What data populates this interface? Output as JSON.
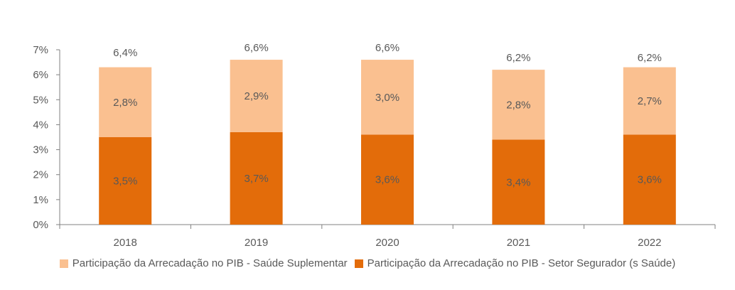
{
  "chart_data": {
    "type": "bar",
    "stacked": true,
    "categories": [
      "2018",
      "2019",
      "2020",
      "2021",
      "2022"
    ],
    "series": [
      {
        "name": "Participação da Arrecadação no PIB  - Setor Segurador (s Saúde)",
        "values": [
          3.5,
          3.7,
          3.6,
          3.4,
          3.6
        ],
        "labels": [
          "3,5%",
          "3,7%",
          "3,6%",
          "3,4%",
          "3,6%"
        ],
        "color": "#E36C0A"
      },
      {
        "name": "Participação da Arrecadação no PIB  - Saúde Suplementar",
        "values": [
          2.8,
          2.9,
          3.0,
          2.8,
          2.7
        ],
        "labels": [
          "2,8%",
          "2,9%",
          "3,0%",
          "2,8%",
          "2,7%"
        ],
        "color": "#FAC090"
      }
    ],
    "totals": [
      6.4,
      6.6,
      6.6,
      6.2,
      6.2
    ],
    "total_labels": [
      "6,4%",
      "6,6%",
      "6,6%",
      "6,2%",
      "6,2%"
    ],
    "ylim": [
      0,
      7
    ],
    "yticks": [
      "0%",
      "1%",
      "2%",
      "3%",
      "4%",
      "5%",
      "6%",
      "7%"
    ],
    "title": "",
    "xlabel": "",
    "ylabel": "",
    "legend_position": "bottom"
  }
}
